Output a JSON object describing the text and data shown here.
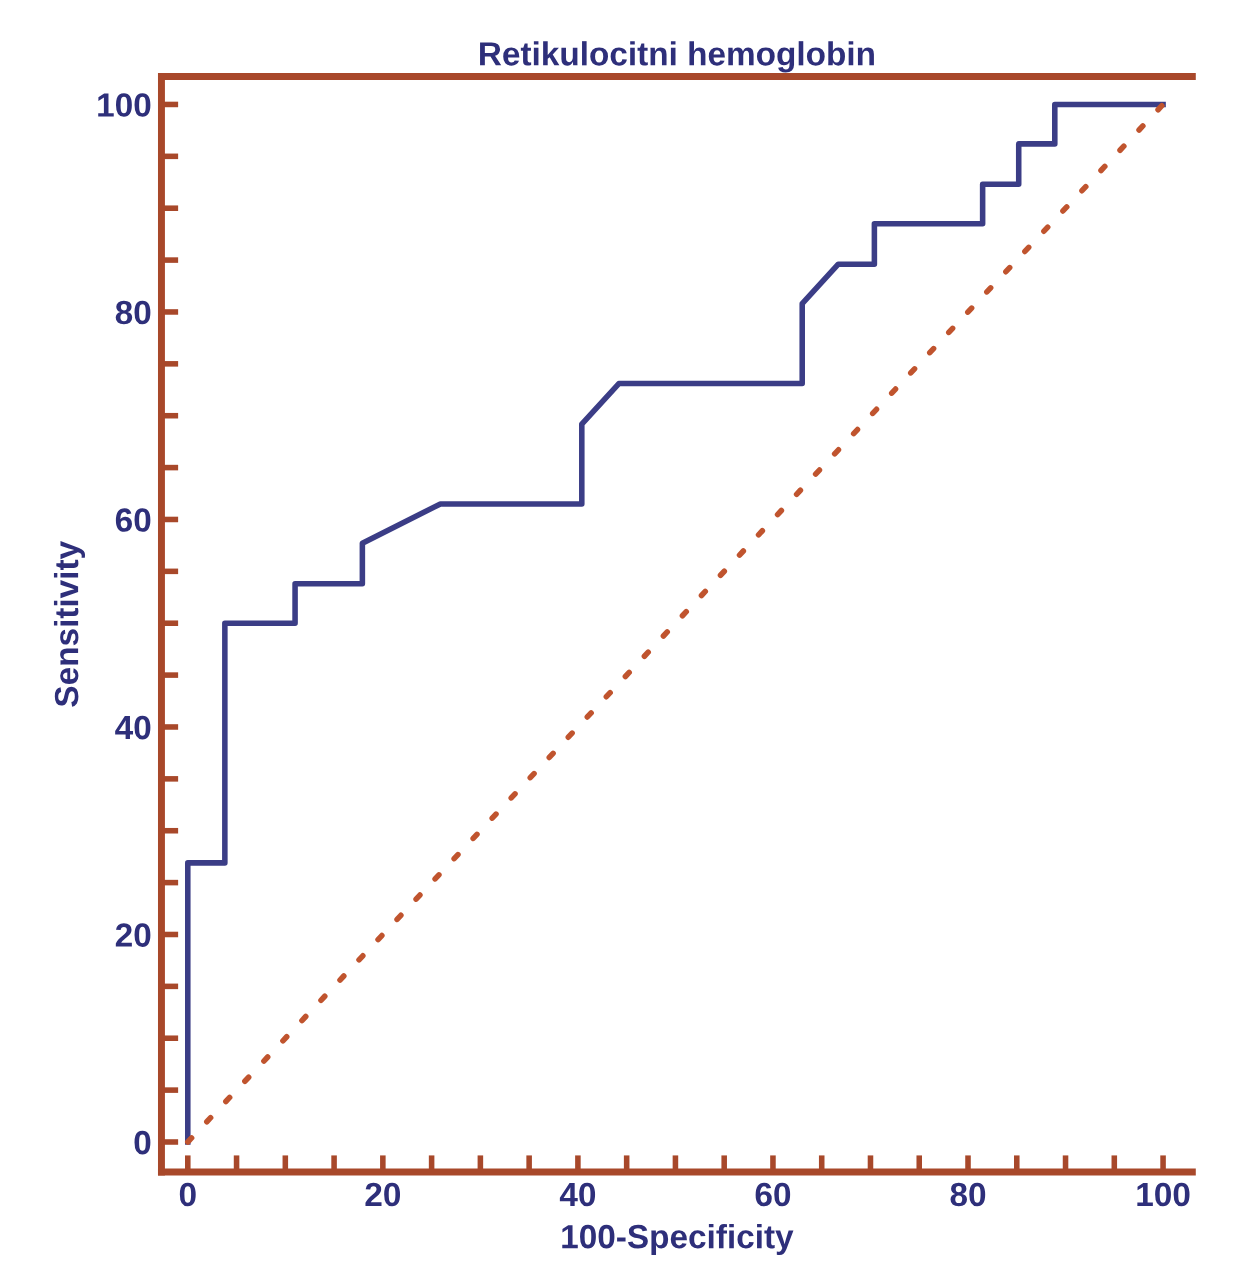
{
  "chart_data": {
    "type": "line",
    "title": "Retikulocitni hemoglobin",
    "xlabel": "100-Specificity",
    "ylabel": "Sensitivity",
    "series": [
      {
        "x": [
          0,
          0,
          3.8,
          3.8,
          11,
          11,
          17.9,
          17.9,
          25.9,
          40.4,
          40.4,
          44.2,
          63.0,
          63.0,
          66.7,
          70.4,
          70.4,
          81.5,
          81.5,
          85.2,
          85.2,
          88.9,
          88.9,
          100
        ],
        "values": [
          0,
          26.9,
          26.9,
          50,
          50,
          53.8,
          53.8,
          57.7,
          61.5,
          61.5,
          69.2,
          73.1,
          73.1,
          80.8,
          84.6,
          84.6,
          88.5,
          88.5,
          92.3,
          92.3,
          96.2,
          96.2,
          100,
          100
        ],
        "color": "#3b3d86",
        "line_style": "solid"
      },
      {
        "x": [
          0,
          100
        ],
        "values": [
          0,
          100
        ],
        "color": "#c0542e",
        "line_style": "dotted"
      }
    ],
    "xlim": [
      -2.7,
      103
    ],
    "ylim": [
      -2.9,
      102.7
    ],
    "xticks": [
      0,
      {
        "value": 5,
        "label": null
      },
      {
        "value": 10,
        "label": null
      },
      {
        "value": 15,
        "label": null
      },
      20,
      {
        "value": 25,
        "label": null
      },
      {
        "value": 30,
        "label": null
      },
      {
        "value": 35,
        "label": null
      },
      40,
      {
        "value": 45,
        "label": null
      },
      {
        "value": 50,
        "label": null
      },
      {
        "value": 55,
        "label": null
      },
      60,
      {
        "value": 65,
        "label": null
      },
      {
        "value": 70,
        "label": null
      },
      {
        "value": 75,
        "label": null
      },
      80,
      {
        "value": 85,
        "label": null
      },
      {
        "value": 90,
        "label": null
      },
      {
        "value": 95,
        "label": null
      },
      100
    ],
    "yticks": [
      0,
      {
        "value": 5,
        "label": null
      },
      {
        "value": 10,
        "label": null
      },
      {
        "value": 15,
        "label": null
      },
      20,
      {
        "value": 25,
        "label": null
      },
      {
        "value": 30,
        "label": null
      },
      {
        "value": 35,
        "label": null
      },
      40,
      {
        "value": 45,
        "label": null
      },
      {
        "value": 50,
        "label": null
      },
      {
        "value": 55,
        "label": null
      },
      60,
      {
        "value": 65,
        "label": null
      },
      {
        "value": 70,
        "label": null
      },
      {
        "value": 75,
        "label": null
      },
      80,
      {
        "value": 85,
        "label": null
      },
      {
        "value": 90,
        "label": null
      },
      {
        "value": 95,
        "label": null
      },
      100
    ],
    "grid": false,
    "legend": false
  }
}
